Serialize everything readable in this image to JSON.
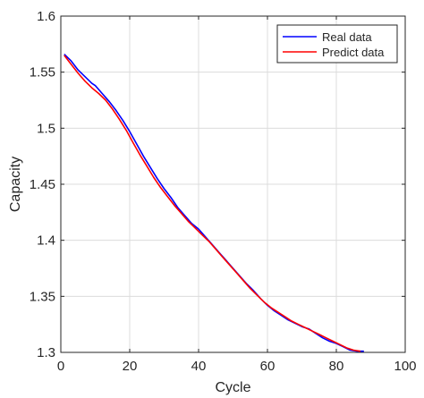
{
  "chart_data": {
    "type": "line",
    "title": "",
    "xlabel": "Cycle",
    "ylabel": "Capacity",
    "xlim": [
      0,
      100
    ],
    "ylim": [
      1.3,
      1.6
    ],
    "xticks": [
      0,
      20,
      40,
      60,
      80,
      100
    ],
    "yticks": [
      1.3,
      1.35,
      1.4,
      1.45,
      1.5,
      1.55,
      1.6
    ],
    "xtick_labels": [
      "0",
      "20",
      "40",
      "60",
      "80",
      "100"
    ],
    "ytick_labels": [
      "1.3",
      "1.35",
      "1.4",
      "1.45",
      "1.5",
      "1.55",
      "1.6"
    ],
    "grid": true,
    "legend_position": "top-right",
    "series": [
      {
        "name": "Real data",
        "color": "#0000ff",
        "x": [
          1,
          3,
          5,
          7,
          9,
          10,
          12,
          14,
          16,
          18,
          20,
          22,
          24,
          26,
          28,
          30,
          32,
          34,
          36,
          38,
          40,
          42,
          44,
          46,
          48,
          50,
          52,
          54,
          56,
          58,
          60,
          62,
          64,
          66,
          68,
          70,
          72,
          74,
          76,
          78,
          80,
          82,
          84,
          86,
          88
        ],
        "y": [
          1.566,
          1.56,
          1.552,
          1.546,
          1.54,
          1.538,
          1.531,
          1.524,
          1.516,
          1.507,
          1.497,
          1.486,
          1.475,
          1.465,
          1.455,
          1.446,
          1.438,
          1.429,
          1.422,
          1.415,
          1.41,
          1.403,
          1.396,
          1.389,
          1.382,
          1.375,
          1.368,
          1.361,
          1.355,
          1.348,
          1.342,
          1.337,
          1.333,
          1.329,
          1.326,
          1.323,
          1.321,
          1.317,
          1.313,
          1.31,
          1.308,
          1.305,
          1.302,
          1.301,
          1.301
        ]
      },
      {
        "name": "Predict data",
        "color": "#ff0000",
        "x": [
          1,
          3,
          5,
          7,
          9,
          11,
          13,
          15,
          17,
          19,
          21,
          23,
          25,
          27,
          29,
          31,
          33,
          35,
          37,
          39,
          41,
          43,
          45,
          47,
          49,
          51,
          53,
          55,
          57,
          59,
          61,
          63,
          65,
          67,
          69,
          71,
          73,
          75,
          77,
          79,
          81,
          83,
          85,
          87
        ],
        "y": [
          1.565,
          1.557,
          1.549,
          1.542,
          1.536,
          1.531,
          1.525,
          1.517,
          1.508,
          1.498,
          1.487,
          1.476,
          1.466,
          1.456,
          1.447,
          1.439,
          1.431,
          1.424,
          1.417,
          1.411,
          1.405,
          1.399,
          1.392,
          1.385,
          1.378,
          1.371,
          1.364,
          1.357,
          1.351,
          1.345,
          1.34,
          1.336,
          1.332,
          1.328,
          1.325,
          1.322,
          1.319,
          1.316,
          1.313,
          1.31,
          1.307,
          1.304,
          1.302,
          1.301
        ]
      }
    ]
  }
}
